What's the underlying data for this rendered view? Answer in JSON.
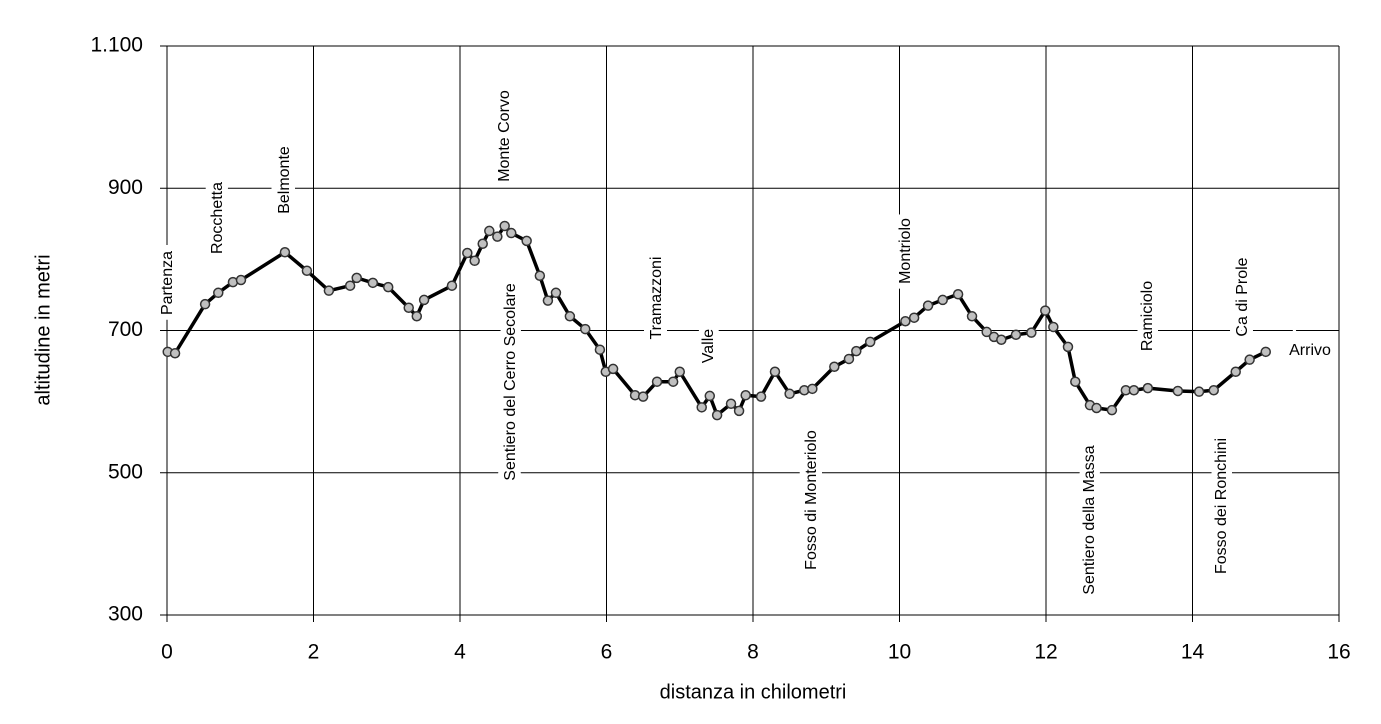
{
  "chart_data": {
    "type": "line",
    "x_label": "distanza in chilometri",
    "y_label": "altitudine  in metri",
    "x": [
      0.01,
      0.11,
      0.52,
      0.7,
      0.9,
      1.01,
      1.61,
      1.91,
      2.21,
      2.5,
      2.59,
      2.81,
      3.02,
      3.3,
      3.41,
      3.51,
      3.89,
      4.1,
      4.2,
      4.31,
      4.4,
      4.51,
      4.61,
      4.7,
      4.91,
      5.09,
      5.2,
      5.31,
      5.5,
      5.71,
      5.91,
      5.99,
      6.09,
      6.39,
      6.5,
      6.69,
      6.91,
      7.0,
      7.3,
      7.41,
      7.51,
      7.7,
      7.81,
      7.9,
      8.11,
      8.3,
      8.5,
      8.7,
      8.81,
      9.11,
      9.31,
      9.41,
      9.6,
      10.08,
      10.2,
      10.39,
      10.59,
      10.8,
      10.99,
      11.19,
      11.29,
      11.39,
      11.59,
      11.8,
      11.99,
      12.1,
      12.3,
      12.4,
      12.6,
      12.69,
      12.9,
      13.09,
      13.2,
      13.39,
      13.8,
      14.09,
      14.29,
      14.59,
      14.78,
      15.0
    ],
    "values": [
      670,
      668,
      737,
      753,
      768,
      771,
      810,
      784,
      756,
      763,
      774,
      767,
      761,
      732,
      720,
      743,
      763,
      809,
      798,
      822,
      840,
      832,
      847,
      837,
      826,
      777,
      742,
      753,
      720,
      702,
      673,
      642,
      646,
      609,
      607,
      628,
      628,
      642,
      592,
      608,
      581,
      597,
      587,
      609,
      607,
      642,
      611,
      616,
      618,
      649,
      660,
      671,
      684,
      713,
      718,
      735,
      743,
      751,
      720,
      698,
      691,
      687,
      694,
      697,
      728,
      705,
      677,
      628,
      595,
      591,
      588,
      616,
      616,
      619,
      615,
      614,
      616,
      642,
      659,
      670
    ],
    "line_color": "#000000",
    "marker_color": "#c0c0c0",
    "xlim": [
      0,
      16
    ],
    "xticks": [
      0,
      2,
      4,
      6,
      8,
      10,
      12,
      14,
      16
    ],
    "ylim": [
      300,
      1100
    ],
    "yticks": [
      300,
      500,
      700,
      900,
      {
        "value": 1100,
        "label": "1.100"
      }
    ],
    "grid": true,
    "annotations": [
      "Partenza",
      "Rocchetta",
      "Belmonte",
      "Monte Corvo",
      "Sentiero del Cerro Secolare",
      "Tramazzoni",
      "Valle",
      "Fosso di Monteriolo",
      "Montriolo",
      "Sentiero della Massa",
      "Ramiciolo",
      "Fosso dei Ronchini",
      "Ca di Prole",
      "Arrivo"
    ]
  }
}
